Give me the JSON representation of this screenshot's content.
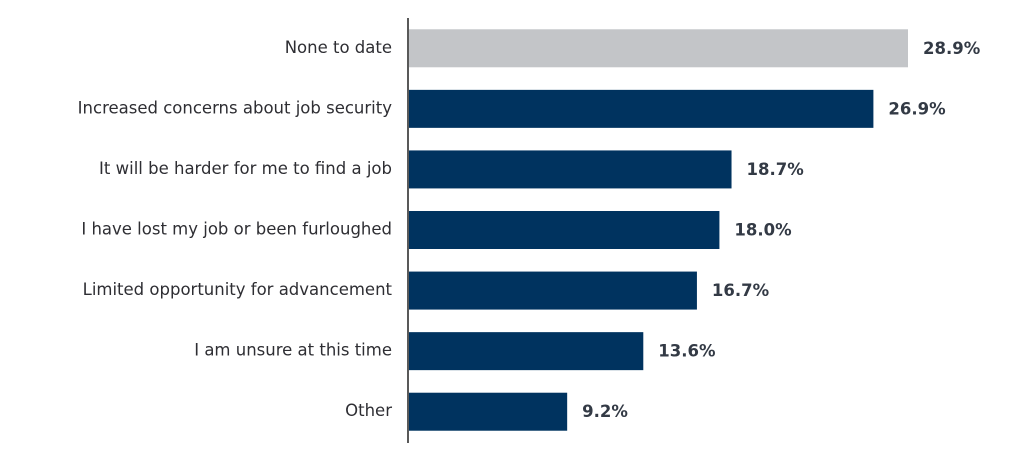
{
  "chart_data": {
    "type": "hbar",
    "categories": [
      "None to date",
      "Increased concerns about job security",
      "It will be harder for me to find a job",
      "I have lost my job or been furloughed",
      "Limited opportunity for advancement",
      "I am unsure at this time",
      "Other"
    ],
    "values": [
      28.9,
      26.9,
      18.7,
      18.0,
      16.7,
      13.6,
      9.2
    ],
    "value_labels": [
      "28.9%",
      "26.9%",
      "18.7%",
      "18.0%",
      "16.7%",
      "13.6%",
      "9.2%"
    ],
    "colors": [
      "#c3c5c8",
      "#00335f",
      "#00335f",
      "#00335f",
      "#00335f",
      "#00335f",
      "#00335f"
    ]
  }
}
